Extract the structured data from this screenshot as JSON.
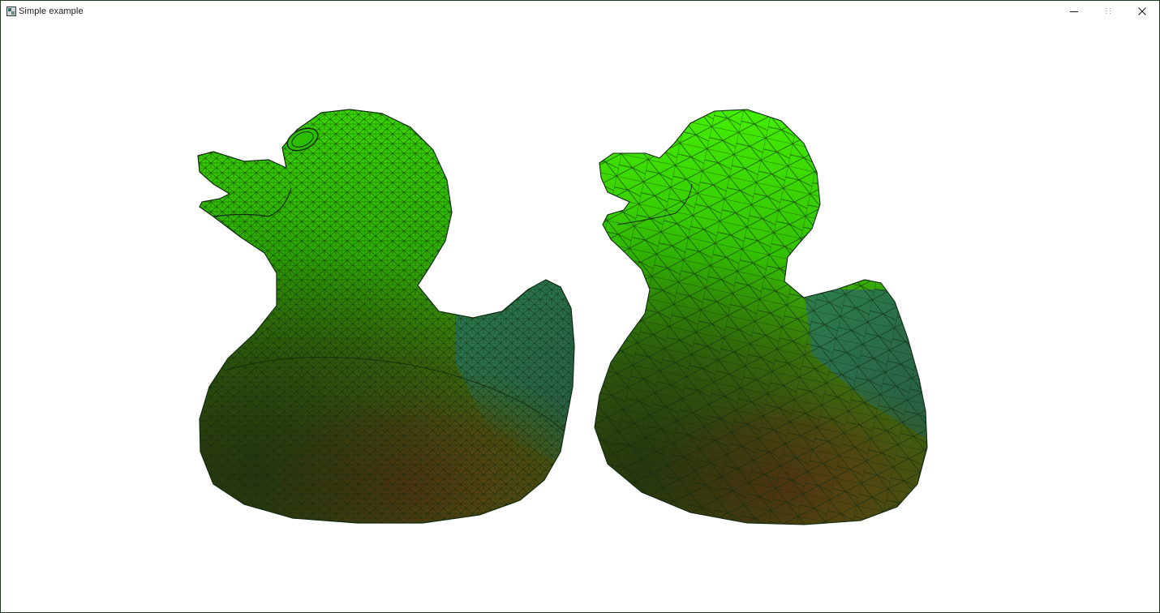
{
  "window": {
    "title": "Simple example",
    "icon": "application-icon",
    "controls": {
      "minimize": "minimize-icon",
      "maximize": "maximize-icon",
      "close": "close-icon"
    }
  },
  "viewport": {
    "background": "#ffffff",
    "models": [
      {
        "name": "duck-fine-mesh",
        "mesh": "dense",
        "colors": {
          "head": "#33dd00",
          "tail": "#2a7560",
          "belly": "#5a3810",
          "wire": "#0f2a0f"
        }
      },
      {
        "name": "duck-coarse-mesh",
        "mesh": "sparse",
        "colors": {
          "head": "#3fea00",
          "tail": "#2a7560",
          "belly": "#5a3810",
          "wire": "#0f2a0f"
        }
      }
    ]
  }
}
